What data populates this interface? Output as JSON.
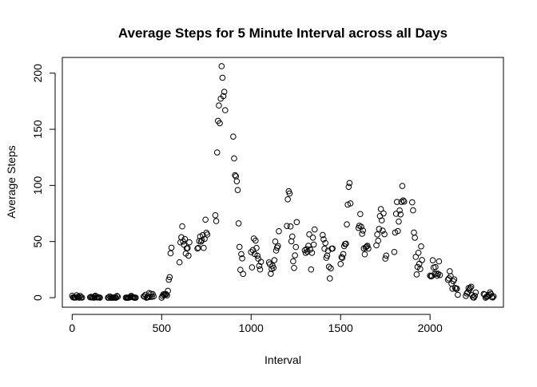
{
  "chart_data": {
    "type": "scatter",
    "title": "Average Steps for 5 Minute Interval across all Days",
    "xlabel": "Interval",
    "ylabel": "Average Steps",
    "xlim": [
      -55,
      2410
    ],
    "ylim": [
      -8.5,
      214
    ],
    "xticks": [
      0,
      500,
      1000,
      1500,
      2000
    ],
    "yticks": [
      0,
      50,
      100,
      150,
      200
    ],
    "grid": false,
    "marker": "open-circle",
    "colors": {
      "marker": "#000000",
      "axis": "#000000",
      "background": "#ffffff"
    },
    "points": [
      [
        0,
        1.7
      ],
      [
        5,
        0.3
      ],
      [
        10,
        0.1
      ],
      [
        15,
        0.2
      ],
      [
        20,
        0.1
      ],
      [
        25,
        2.1
      ],
      [
        30,
        0.5
      ],
      [
        35,
        0.9
      ],
      [
        40,
        0
      ],
      [
        45,
        1.5
      ],
      [
        50,
        0.3
      ],
      [
        55,
        0.1
      ],
      [
        100,
        0.3
      ],
      [
        105,
        0.7
      ],
      [
        110,
        0.2
      ],
      [
        115,
        0.3
      ],
      [
        120,
        0
      ],
      [
        125,
        1.1
      ],
      [
        130,
        1.8
      ],
      [
        135,
        0.2
      ],
      [
        140,
        0.2
      ],
      [
        145,
        0.4
      ],
      [
        150,
        0.3
      ],
      [
        155,
        0
      ],
      [
        200,
        0
      ],
      [
        205,
        0
      ],
      [
        210,
        1.1
      ],
      [
        215,
        0
      ],
      [
        220,
        0
      ],
      [
        225,
        0.1
      ],
      [
        230,
        0
      ],
      [
        235,
        0.2
      ],
      [
        240,
        0
      ],
      [
        245,
        0
      ],
      [
        250,
        1.5
      ],
      [
        255,
        0.9
      ],
      [
        300,
        0
      ],
      [
        305,
        0
      ],
      [
        310,
        0
      ],
      [
        315,
        0
      ],
      [
        320,
        0.2
      ],
      [
        325,
        0.6
      ],
      [
        330,
        1.6
      ],
      [
        335,
        0.6
      ],
      [
        340,
        0.5
      ],
      [
        345,
        0.1
      ],
      [
        350,
        0
      ],
      [
        355,
        0
      ],
      [
        400,
        1.2
      ],
      [
        405,
        0.9
      ],
      [
        410,
        2.6
      ],
      [
        415,
        0
      ],
      [
        420,
        0.3
      ],
      [
        425,
        0.4
      ],
      [
        430,
        4.1
      ],
      [
        435,
        0.7
      ],
      [
        440,
        3.5
      ],
      [
        445,
        0.8
      ],
      [
        450,
        3.1
      ],
      [
        455,
        1.1
      ],
      [
        500,
        0
      ],
      [
        505,
        1.6
      ],
      [
        510,
        3
      ],
      [
        515,
        2.2
      ],
      [
        520,
        3.3
      ],
      [
        525,
        3
      ],
      [
        530,
        2.1
      ],
      [
        535,
        6.1
      ],
      [
        540,
        16
      ],
      [
        545,
        18.3
      ],
      [
        550,
        39.5
      ],
      [
        555,
        44.5
      ],
      [
        600,
        31.5
      ],
      [
        605,
        49.3
      ],
      [
        610,
        53.8
      ],
      [
        615,
        63.5
      ],
      [
        620,
        50
      ],
      [
        625,
        47.1
      ],
      [
        630,
        52.2
      ],
      [
        635,
        39.3
      ],
      [
        640,
        44
      ],
      [
        645,
        44.2
      ],
      [
        650,
        37.4
      ],
      [
        655,
        49.3
      ],
      [
        700,
        43.8
      ],
      [
        705,
        44.4
      ],
      [
        710,
        50.5
      ],
      [
        715,
        54.5
      ],
      [
        720,
        49.9
      ],
      [
        725,
        51
      ],
      [
        730,
        55.7
      ],
      [
        735,
        44.3
      ],
      [
        740,
        52.3
      ],
      [
        745,
        69.5
      ],
      [
        750,
        57.8
      ],
      [
        755,
        56.2
      ],
      [
        800,
        73.4
      ],
      [
        805,
        68.2
      ],
      [
        810,
        129.4
      ],
      [
        815,
        157.5
      ],
      [
        820,
        171.2
      ],
      [
        825,
        155.4
      ],
      [
        830,
        177.3
      ],
      [
        835,
        206.2
      ],
      [
        840,
        195.9
      ],
      [
        845,
        179.6
      ],
      [
        850,
        183.4
      ],
      [
        855,
        167
      ],
      [
        900,
        143.5
      ],
      [
        905,
        124
      ],
      [
        910,
        109.1
      ],
      [
        915,
        108.1
      ],
      [
        920,
        103.7
      ],
      [
        925,
        95.9
      ],
      [
        930,
        66.2
      ],
      [
        935,
        45.2
      ],
      [
        940,
        24.8
      ],
      [
        945,
        38.8
      ],
      [
        950,
        34.98
      ],
      [
        955,
        21.1
      ],
      [
        1000,
        40.6
      ],
      [
        1005,
        26.98
      ],
      [
        1010,
        42.4
      ],
      [
        1015,
        52.7
      ],
      [
        1020,
        38.9
      ],
      [
        1025,
        50.8
      ],
      [
        1030,
        44.3
      ],
      [
        1035,
        37.4
      ],
      [
        1040,
        34.7
      ],
      [
        1045,
        28.3
      ],
      [
        1050,
        25.1
      ],
      [
        1055,
        31.9
      ],
      [
        1100,
        31.4
      ],
      [
        1105,
        29.7
      ],
      [
        1110,
        21.3
      ],
      [
        1115,
        25.5
      ],
      [
        1120,
        28.4
      ],
      [
        1125,
        26.5
      ],
      [
        1130,
        33.4
      ],
      [
        1135,
        49.98
      ],
      [
        1140,
        42
      ],
      [
        1145,
        44.6
      ],
      [
        1150,
        46
      ],
      [
        1155,
        59.2
      ],
      [
        1200,
        63.9
      ],
      [
        1205,
        87.6
      ],
      [
        1210,
        94.8
      ],
      [
        1215,
        92.8
      ],
      [
        1220,
        63.4
      ],
      [
        1225,
        50.2
      ],
      [
        1230,
        54.5
      ],
      [
        1235,
        32.4
      ],
      [
        1240,
        26.5
      ],
      [
        1245,
        37.7
      ],
      [
        1250,
        45.1
      ],
      [
        1255,
        67.3
      ],
      [
        1300,
        42.3
      ],
      [
        1305,
        39.9
      ],
      [
        1310,
        43.3
      ],
      [
        1315,
        40.98
      ],
      [
        1320,
        46.2
      ],
      [
        1325,
        56.4
      ],
      [
        1330,
        42.8
      ],
      [
        1335,
        25.1
      ],
      [
        1340,
        39.97
      ],
      [
        1345,
        53.5
      ],
      [
        1350,
        47.3
      ],
      [
        1355,
        60.8
      ],
      [
        1400,
        55.8
      ],
      [
        1405,
        51.96
      ],
      [
        1410,
        43.6
      ],
      [
        1415,
        48.7
      ],
      [
        1420,
        35.5
      ],
      [
        1425,
        37.5
      ],
      [
        1430,
        41.8
      ],
      [
        1435,
        27.5
      ],
      [
        1440,
        17.1
      ],
      [
        1445,
        26.1
      ],
      [
        1450,
        43.6
      ],
      [
        1455,
        43.8
      ],
      [
        1500,
        30
      ],
      [
        1505,
        36.1
      ],
      [
        1510,
        35.5
      ],
      [
        1515,
        38.8
      ],
      [
        1520,
        45.96
      ],
      [
        1525,
        47.8
      ],
      [
        1530,
        48.1
      ],
      [
        1535,
        65.3
      ],
      [
        1540,
        82.9
      ],
      [
        1545,
        98.7
      ],
      [
        1550,
        102.1
      ],
      [
        1555,
        83.96
      ],
      [
        1600,
        62.1
      ],
      [
        1605,
        64.1
      ],
      [
        1610,
        74.5
      ],
      [
        1615,
        63.2
      ],
      [
        1620,
        56.9
      ],
      [
        1625,
        59.8
      ],
      [
        1630,
        43.9
      ],
      [
        1635,
        38.6
      ],
      [
        1640,
        44.7
      ],
      [
        1645,
        45.5
      ],
      [
        1650,
        46.2
      ],
      [
        1655,
        43.7
      ],
      [
        1700,
        46.6
      ],
      [
        1705,
        56.3
      ],
      [
        1710,
        50.7
      ],
      [
        1715,
        61.2
      ],
      [
        1720,
        72.7
      ],
      [
        1725,
        78.9
      ],
      [
        1730,
        68.9
      ],
      [
        1735,
        59.7
      ],
      [
        1740,
        75.1
      ],
      [
        1745,
        56.5
      ],
      [
        1750,
        34.8
      ],
      [
        1755,
        37.5
      ],
      [
        1800,
        40.7
      ],
      [
        1805,
        58
      ],
      [
        1810,
        74.7
      ],
      [
        1815,
        85.3
      ],
      [
        1820,
        59.3
      ],
      [
        1825,
        67.8
      ],
      [
        1830,
        77.7
      ],
      [
        1835,
        74.2
      ],
      [
        1840,
        85.3
      ],
      [
        1845,
        99.5
      ],
      [
        1850,
        86.6
      ],
      [
        1855,
        85.6
      ],
      [
        1900,
        84.9
      ],
      [
        1905,
        77.8
      ],
      [
        1910,
        58
      ],
      [
        1915,
        53.4
      ],
      [
        1920,
        36.3
      ],
      [
        1925,
        20.7
      ],
      [
        1930,
        27.4
      ],
      [
        1935,
        40
      ],
      [
        1940,
        30.2
      ],
      [
        1945,
        25.5
      ],
      [
        1950,
        45.7
      ],
      [
        1955,
        33.5
      ],
      [
        2000,
        19.6
      ],
      [
        2005,
        19
      ],
      [
        2010,
        19.3
      ],
      [
        2015,
        33.3
      ],
      [
        2020,
        26.8
      ],
      [
        2025,
        21.2
      ],
      [
        2030,
        27.3
      ],
      [
        2035,
        21.3
      ],
      [
        2040,
        19.6
      ],
      [
        2045,
        21.3
      ],
      [
        2050,
        32.3
      ],
      [
        2055,
        20.2
      ],
      [
        2100,
        15.9
      ],
      [
        2105,
        17.2
      ],
      [
        2110,
        23.5
      ],
      [
        2115,
        19.2
      ],
      [
        2120,
        12.5
      ],
      [
        2125,
        8
      ],
      [
        2130,
        14.7
      ],
      [
        2135,
        16.3
      ],
      [
        2140,
        8.7
      ],
      [
        2145,
        7.8
      ],
      [
        2150,
        8.1
      ],
      [
        2155,
        2.6
      ],
      [
        2200,
        1.5
      ],
      [
        2205,
        3.7
      ],
      [
        2210,
        4.8
      ],
      [
        2215,
        8.5
      ],
      [
        2220,
        7.1
      ],
      [
        2225,
        8.7
      ],
      [
        2230,
        9.8
      ],
      [
        2235,
        2.2
      ],
      [
        2240,
        0.3
      ],
      [
        2245,
        0.1
      ],
      [
        2250,
        1.6
      ],
      [
        2255,
        4.6
      ],
      [
        2300,
        3.3
      ],
      [
        2305,
        2.8
      ],
      [
        2310,
        0
      ],
      [
        2315,
        0.8
      ],
      [
        2320,
        0.96
      ],
      [
        2325,
        1.6
      ],
      [
        2330,
        2.6
      ],
      [
        2335,
        4.7
      ],
      [
        2340,
        3.3
      ],
      [
        2345,
        0.6
      ],
      [
        2350,
        0.2
      ],
      [
        2355,
        1.1
      ]
    ]
  }
}
